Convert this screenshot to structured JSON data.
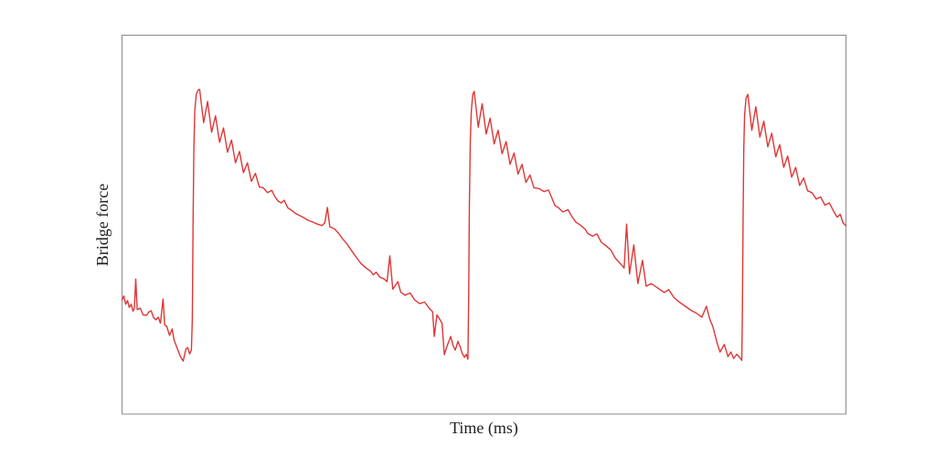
{
  "figure": {
    "background": "#ffffff",
    "frame_color": "#8a8a8a",
    "text_color": "#1f1f1f"
  },
  "chart_data": {
    "type": "line",
    "title": "",
    "xlabel": "Time (ms)",
    "ylabel": "Bridge force",
    "x_range": [
      0,
      100
    ],
    "y_range": [
      0,
      1
    ],
    "x_ticks": [],
    "y_ticks": [],
    "grid": false,
    "legend": null,
    "note": "No numeric tick labels are shown on either axis. Signal is a periodic stick-slip (sawtooth-like) bridge-force waveform: sharp vertical rises at t≈9.7, 47.8 and 85.7 (normalized units), each followed by damped ripples and a noisy descending ramp with occasional spikes and double-dip minima before the next rise. Values below are in normalized axes coordinates.",
    "series": [
      {
        "name": "bridge force",
        "color": "#e03636",
        "stroke_width": 1.4,
        "points": [
          [
            0,
            0.302
          ],
          [
            0.25,
            0.312
          ],
          [
            0.5,
            0.29
          ],
          [
            0.76,
            0.3
          ],
          [
            1,
            0.282
          ],
          [
            1.26,
            0.29
          ],
          [
            1.51,
            0.272
          ],
          [
            1.7,
            0.28
          ],
          [
            1.89,
            0.357
          ],
          [
            2.1,
            0.276
          ],
          [
            2.52,
            0.28
          ],
          [
            2.9,
            0.262
          ],
          [
            3.4,
            0.261
          ],
          [
            3.7,
            0.27
          ],
          [
            4.03,
            0.273
          ],
          [
            4.35,
            0.255
          ],
          [
            4.67,
            0.249
          ],
          [
            5,
            0.256
          ],
          [
            5.3,
            0.24
          ],
          [
            5.67,
            0.304
          ],
          [
            5.9,
            0.235
          ],
          [
            6.18,
            0.232
          ],
          [
            6.56,
            0.208
          ],
          [
            6.93,
            0.225
          ],
          [
            7.19,
            0.196
          ],
          [
            7.57,
            0.176
          ],
          [
            8.07,
            0.152
          ],
          [
            8.45,
            0.14
          ],
          [
            8.83,
            0.172
          ],
          [
            9.08,
            0.176
          ],
          [
            9.33,
            0.159
          ],
          [
            9.58,
            0.169
          ],
          [
            9.71,
            0.25
          ],
          [
            9.81,
            0.5
          ],
          [
            9.92,
            0.7
          ],
          [
            10.05,
            0.8
          ],
          [
            10.25,
            0.845
          ],
          [
            10.5,
            0.856
          ],
          [
            10.72,
            0.858
          ],
          [
            11.27,
            0.77
          ],
          [
            11.82,
            0.826
          ],
          [
            12.37,
            0.745
          ],
          [
            12.92,
            0.788
          ],
          [
            13.47,
            0.718
          ],
          [
            14.02,
            0.756
          ],
          [
            14.57,
            0.692
          ],
          [
            15.12,
            0.724
          ],
          [
            15.67,
            0.664
          ],
          [
            16.22,
            0.694
          ],
          [
            16.77,
            0.638
          ],
          [
            17.32,
            0.664
          ],
          [
            17.87,
            0.615
          ],
          [
            18.42,
            0.636
          ],
          [
            18.97,
            0.6
          ],
          [
            19.5,
            0.598
          ],
          [
            20.1,
            0.585
          ],
          [
            20.7,
            0.591
          ],
          [
            21.1,
            0.575
          ],
          [
            21.6,
            0.562
          ],
          [
            22,
            0.558
          ],
          [
            22.4,
            0.565
          ],
          [
            22.9,
            0.545
          ],
          [
            23.4,
            0.539
          ],
          [
            23.9,
            0.531
          ],
          [
            24.5,
            0.525
          ],
          [
            25.1,
            0.519
          ],
          [
            25.7,
            0.512
          ],
          [
            26.4,
            0.507
          ],
          [
            27,
            0.502
          ],
          [
            27.6,
            0.498
          ],
          [
            28,
            0.505
          ],
          [
            28.37,
            0.546
          ],
          [
            28.7,
            0.495
          ],
          [
            29.3,
            0.49
          ],
          [
            29.9,
            0.478
          ],
          [
            30.5,
            0.462
          ],
          [
            31.1,
            0.449
          ],
          [
            31.7,
            0.432
          ],
          [
            32.4,
            0.413
          ],
          [
            33,
            0.398
          ],
          [
            33.7,
            0.386
          ],
          [
            34.3,
            0.378
          ],
          [
            34.7,
            0.368
          ],
          [
            35.1,
            0.375
          ],
          [
            35.6,
            0.362
          ],
          [
            36.2,
            0.357
          ],
          [
            36.6,
            0.35
          ],
          [
            37,
            0.418
          ],
          [
            37.4,
            0.33
          ],
          [
            38.1,
            0.35
          ],
          [
            38.5,
            0.322
          ],
          [
            39.1,
            0.314
          ],
          [
            39.8,
            0.32
          ],
          [
            40.4,
            0.302
          ],
          [
            41.1,
            0.292
          ],
          [
            41.8,
            0.296
          ],
          [
            42.5,
            0.278
          ],
          [
            42.9,
            0.27
          ],
          [
            43.13,
            0.205
          ],
          [
            43.5,
            0.262
          ],
          [
            43.9,
            0.25
          ],
          [
            44.2,
            0.24
          ],
          [
            44.52,
            0.157
          ],
          [
            44.9,
            0.18
          ],
          [
            45.4,
            0.205
          ],
          [
            45.75,
            0.18
          ],
          [
            46.03,
            0.169
          ],
          [
            46.4,
            0.192
          ],
          [
            46.7,
            0.178
          ],
          [
            47,
            0.16
          ],
          [
            47.3,
            0.15
          ],
          [
            47.55,
            0.158
          ],
          [
            47.78,
            0.145
          ],
          [
            47.88,
            0.3
          ],
          [
            47.98,
            0.55
          ],
          [
            48.1,
            0.72
          ],
          [
            48.25,
            0.8
          ],
          [
            48.45,
            0.845
          ],
          [
            48.65,
            0.853
          ],
          [
            49.2,
            0.758
          ],
          [
            49.75,
            0.82
          ],
          [
            50.3,
            0.74
          ],
          [
            50.85,
            0.782
          ],
          [
            51.4,
            0.714
          ],
          [
            51.95,
            0.75
          ],
          [
            52.5,
            0.688
          ],
          [
            53.05,
            0.72
          ],
          [
            53.6,
            0.66
          ],
          [
            54.15,
            0.69
          ],
          [
            54.7,
            0.634
          ],
          [
            55.25,
            0.66
          ],
          [
            55.8,
            0.612
          ],
          [
            56.35,
            0.632
          ],
          [
            56.9,
            0.598
          ],
          [
            57.6,
            0.596
          ],
          [
            58.3,
            0.588
          ],
          [
            58.9,
            0.592
          ],
          [
            59.4,
            0.57
          ],
          [
            59.8,
            0.551
          ],
          [
            60.3,
            0.545
          ],
          [
            60.9,
            0.534
          ],
          [
            61.6,
            0.54
          ],
          [
            62.2,
            0.52
          ],
          [
            62.7,
            0.507
          ],
          [
            63.4,
            0.498
          ],
          [
            64,
            0.488
          ],
          [
            64.3,
            0.478
          ],
          [
            65,
            0.47
          ],
          [
            65.6,
            0.476
          ],
          [
            66.2,
            0.454
          ],
          [
            66.9,
            0.444
          ],
          [
            67.5,
            0.434
          ],
          [
            68.1,
            0.413
          ],
          [
            68.7,
            0.4
          ],
          [
            69.1,
            0.392
          ],
          [
            69.35,
            0.386
          ],
          [
            69.7,
            0.502
          ],
          [
            70.1,
            0.37
          ],
          [
            70.7,
            0.447
          ],
          [
            71.25,
            0.345
          ],
          [
            71.9,
            0.406
          ],
          [
            72.4,
            0.338
          ],
          [
            73.1,
            0.345
          ],
          [
            74,
            0.333
          ],
          [
            74.9,
            0.321
          ],
          [
            75.5,
            0.329
          ],
          [
            76.2,
            0.309
          ],
          [
            76.9,
            0.297
          ],
          [
            77.8,
            0.285
          ],
          [
            78.7,
            0.273
          ],
          [
            79.4,
            0.266
          ],
          [
            80.1,
            0.256
          ],
          [
            80.72,
            0.285
          ],
          [
            81.2,
            0.25
          ],
          [
            81.6,
            0.232
          ],
          [
            82.2,
            0.188
          ],
          [
            82.6,
            0.164
          ],
          [
            83.2,
            0.184
          ],
          [
            83.7,
            0.152
          ],
          [
            84.1,
            0.164
          ],
          [
            84.5,
            0.147
          ],
          [
            84.9,
            0.158
          ],
          [
            85.3,
            0.15
          ],
          [
            85.6,
            0.142
          ],
          [
            85.68,
            0.25
          ],
          [
            85.78,
            0.5
          ],
          [
            85.89,
            0.7
          ],
          [
            86,
            0.79
          ],
          [
            86.2,
            0.835
          ],
          [
            86.45,
            0.845
          ],
          [
            87,
            0.75
          ],
          [
            87.55,
            0.812
          ],
          [
            88.1,
            0.732
          ],
          [
            88.65,
            0.774
          ],
          [
            89.2,
            0.706
          ],
          [
            89.75,
            0.742
          ],
          [
            90.3,
            0.68
          ],
          [
            90.85,
            0.712
          ],
          [
            91.4,
            0.652
          ],
          [
            91.95,
            0.682
          ],
          [
            92.5,
            0.626
          ],
          [
            93.05,
            0.652
          ],
          [
            93.6,
            0.604
          ],
          [
            94.15,
            0.624
          ],
          [
            94.7,
            0.59
          ],
          [
            95.3,
            0.585
          ],
          [
            95.9,
            0.568
          ],
          [
            96.5,
            0.574
          ],
          [
            97.1,
            0.552
          ],
          [
            97.7,
            0.558
          ],
          [
            98.3,
            0.536
          ],
          [
            98.8,
            0.52
          ],
          [
            99.2,
            0.528
          ],
          [
            99.6,
            0.505
          ],
          [
            100,
            0.498
          ]
        ]
      }
    ]
  }
}
